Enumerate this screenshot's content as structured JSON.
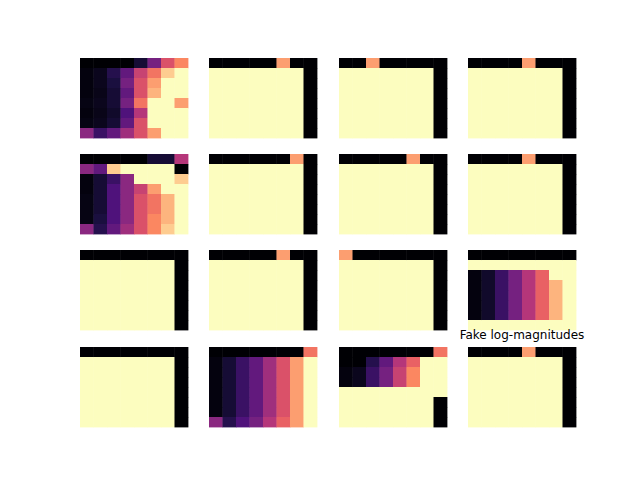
{
  "chart_data": [
    {
      "type": "heatmap",
      "tick_labels": false,
      "clim": [
        0,
        1
      ],
      "cells": [
        [
          0,
          0,
          0,
          0,
          0.1,
          0.35,
          0.6,
          0.75
        ],
        [
          0.02,
          0.05,
          0.15,
          0.3,
          0.55,
          0.7,
          0.9,
          1
        ],
        [
          0.02,
          0.05,
          0.12,
          0.35,
          0.6,
          0.8,
          1,
          1
        ],
        [
          0.02,
          0.04,
          0.1,
          0.3,
          0.6,
          0.85,
          1,
          1
        ],
        [
          0.03,
          0.05,
          0.1,
          0.35,
          0.7,
          1,
          1,
          0.8
        ],
        [
          0.02,
          0.04,
          0.08,
          0.25,
          0.5,
          1,
          1,
          1
        ],
        [
          0.03,
          0.05,
          0.1,
          0.3,
          0.6,
          1,
          1,
          1
        ],
        [
          0.4,
          0.2,
          0.3,
          0.45,
          0.6,
          0.8,
          1,
          1
        ]
      ]
    },
    {
      "type": "heatmap",
      "tick_labels": false,
      "clim": [
        0,
        1
      ],
      "cells": [
        [
          0,
          0,
          0,
          0,
          0,
          0.8,
          0,
          0
        ],
        [
          1,
          1,
          1,
          1,
          1,
          1,
          1,
          0
        ],
        [
          1,
          1,
          1,
          1,
          1,
          1,
          1,
          0
        ],
        [
          1,
          1,
          1,
          1,
          1,
          1,
          1,
          0
        ],
        [
          1,
          1,
          1,
          1,
          1,
          1,
          1,
          0
        ],
        [
          1,
          1,
          1,
          1,
          1,
          1,
          1,
          0
        ],
        [
          1,
          1,
          1,
          1,
          1,
          1,
          1,
          0
        ],
        [
          1,
          1,
          1,
          1,
          1,
          1,
          1,
          0
        ]
      ]
    },
    {
      "type": "heatmap",
      "tick_labels": false,
      "clim": [
        0,
        1
      ],
      "cells": [
        [
          0,
          0,
          0.8,
          0,
          0,
          0,
          0,
          0
        ],
        [
          1,
          1,
          1,
          1,
          1,
          1,
          1,
          0
        ],
        [
          1,
          1,
          1,
          1,
          1,
          1,
          1,
          0
        ],
        [
          1,
          1,
          1,
          1,
          1,
          1,
          1,
          0
        ],
        [
          1,
          1,
          1,
          1,
          1,
          1,
          1,
          0
        ],
        [
          1,
          1,
          1,
          1,
          1,
          1,
          1,
          0
        ],
        [
          1,
          1,
          1,
          1,
          1,
          1,
          1,
          0
        ],
        [
          1,
          1,
          1,
          1,
          1,
          1,
          1,
          0
        ]
      ]
    },
    {
      "type": "heatmap",
      "tick_labels": false,
      "clim": [
        0,
        1
      ],
      "cells": [
        [
          0,
          0,
          0,
          0,
          0.8,
          0,
          0,
          0
        ],
        [
          1,
          1,
          1,
          1,
          1,
          1,
          1,
          0
        ],
        [
          1,
          1,
          1,
          1,
          1,
          1,
          1,
          0
        ],
        [
          1,
          1,
          1,
          1,
          1,
          1,
          1,
          0
        ],
        [
          1,
          1,
          1,
          1,
          1,
          1,
          1,
          0
        ],
        [
          1,
          1,
          1,
          1,
          1,
          1,
          1,
          0
        ],
        [
          1,
          1,
          1,
          1,
          1,
          1,
          1,
          0
        ],
        [
          1,
          1,
          1,
          1,
          1,
          1,
          1,
          0
        ]
      ]
    },
    {
      "type": "heatmap",
      "tick_labels": false,
      "clim": [
        0,
        1
      ],
      "cells": [
        [
          0,
          0,
          0,
          0,
          0,
          0.1,
          0.1,
          0.5
        ],
        [
          0.4,
          0.3,
          0.9,
          1,
          1,
          1,
          1,
          0
        ],
        [
          0.02,
          0.1,
          0.2,
          0.4,
          1,
          1,
          1,
          0.9
        ],
        [
          0.02,
          0.1,
          0.25,
          0.4,
          0.55,
          0.8,
          1,
          1
        ],
        [
          0.03,
          0.1,
          0.25,
          0.4,
          0.6,
          0.7,
          0.85,
          1
        ],
        [
          0.03,
          0.1,
          0.25,
          0.4,
          0.6,
          0.7,
          0.85,
          1
        ],
        [
          0.03,
          0.12,
          0.25,
          0.4,
          0.6,
          0.75,
          0.85,
          1
        ],
        [
          0.4,
          0.15,
          0.3,
          0.45,
          0.6,
          0.75,
          0.9,
          1
        ]
      ]
    },
    {
      "type": "heatmap",
      "tick_labels": false,
      "clim": [
        0,
        1
      ],
      "cells": [
        [
          0,
          0,
          0,
          0,
          0,
          0,
          0.8,
          0
        ],
        [
          1,
          1,
          1,
          1,
          1,
          1,
          1,
          0
        ],
        [
          1,
          1,
          1,
          1,
          1,
          1,
          1,
          0
        ],
        [
          1,
          1,
          1,
          1,
          1,
          1,
          1,
          0
        ],
        [
          1,
          1,
          1,
          1,
          1,
          1,
          1,
          0
        ],
        [
          1,
          1,
          1,
          1,
          1,
          1,
          1,
          0
        ],
        [
          1,
          1,
          1,
          1,
          1,
          1,
          1,
          0
        ],
        [
          1,
          1,
          1,
          1,
          1,
          1,
          1,
          0
        ]
      ]
    },
    {
      "type": "heatmap",
      "tick_labels": false,
      "clim": [
        0,
        1
      ],
      "cells": [
        [
          0,
          0,
          0,
          0,
          0,
          0.8,
          0,
          0
        ],
        [
          1,
          1,
          1,
          1,
          1,
          1,
          1,
          0
        ],
        [
          1,
          1,
          1,
          1,
          1,
          1,
          1,
          0
        ],
        [
          1,
          1,
          1,
          1,
          1,
          1,
          1,
          0
        ],
        [
          1,
          1,
          1,
          1,
          1,
          1,
          1,
          0
        ],
        [
          1,
          1,
          1,
          1,
          1,
          1,
          1,
          0
        ],
        [
          1,
          1,
          1,
          1,
          1,
          1,
          1,
          0
        ],
        [
          1,
          1,
          1,
          1,
          1,
          1,
          1,
          0
        ]
      ]
    },
    {
      "type": "heatmap",
      "tick_labels": false,
      "clim": [
        0,
        1
      ],
      "cells": [
        [
          0,
          0,
          0,
          0,
          0.8,
          0,
          0,
          0
        ],
        [
          1,
          1,
          1,
          1,
          1,
          1,
          1,
          0
        ],
        [
          1,
          1,
          1,
          1,
          1,
          1,
          1,
          0
        ],
        [
          1,
          1,
          1,
          1,
          1,
          1,
          1,
          0
        ],
        [
          1,
          1,
          1,
          1,
          1,
          1,
          1,
          0
        ],
        [
          1,
          1,
          1,
          1,
          1,
          1,
          1,
          0
        ],
        [
          1,
          1,
          1,
          1,
          1,
          1,
          1,
          0
        ],
        [
          1,
          1,
          1,
          1,
          1,
          1,
          1,
          0
        ]
      ]
    },
    {
      "type": "heatmap",
      "tick_labels": false,
      "clim": [
        0,
        1
      ],
      "cells": [
        [
          0,
          0,
          0,
          0,
          0,
          0,
          0,
          0
        ],
        [
          1,
          1,
          1,
          1,
          1,
          1,
          1,
          0
        ],
        [
          1,
          1,
          1,
          1,
          1,
          1,
          1,
          0
        ],
        [
          1,
          1,
          1,
          1,
          1,
          1,
          1,
          0
        ],
        [
          1,
          1,
          1,
          1,
          1,
          1,
          1,
          0
        ],
        [
          1,
          1,
          1,
          1,
          1,
          1,
          1,
          0
        ],
        [
          1,
          1,
          1,
          1,
          1,
          1,
          1,
          0
        ],
        [
          1,
          1,
          1,
          1,
          1,
          1,
          1,
          0
        ]
      ]
    },
    {
      "type": "heatmap",
      "tick_labels": false,
      "clim": [
        0,
        1
      ],
      "cells": [
        [
          0,
          0,
          0,
          0,
          0,
          0.8,
          0,
          0
        ],
        [
          1,
          1,
          1,
          1,
          1,
          1,
          1,
          0
        ],
        [
          1,
          1,
          1,
          1,
          1,
          1,
          1,
          0
        ],
        [
          1,
          1,
          1,
          1,
          1,
          1,
          1,
          0
        ],
        [
          1,
          1,
          1,
          1,
          1,
          1,
          1,
          0
        ],
        [
          1,
          1,
          1,
          1,
          1,
          1,
          1,
          0
        ],
        [
          1,
          1,
          1,
          1,
          1,
          1,
          1,
          0
        ],
        [
          1,
          1,
          1,
          1,
          1,
          1,
          1,
          0
        ]
      ]
    },
    {
      "type": "heatmap",
      "tick_labels": false,
      "clim": [
        0,
        1
      ],
      "cells": [
        [
          0.8,
          0,
          0,
          0,
          0,
          0,
          0,
          0
        ],
        [
          1,
          1,
          1,
          1,
          1,
          1,
          1,
          0
        ],
        [
          1,
          1,
          1,
          1,
          1,
          1,
          1,
          0
        ],
        [
          1,
          1,
          1,
          1,
          1,
          1,
          1,
          0
        ],
        [
          1,
          1,
          1,
          1,
          1,
          1,
          1,
          0
        ],
        [
          1,
          1,
          1,
          1,
          1,
          1,
          1,
          0
        ],
        [
          1,
          1,
          1,
          1,
          1,
          1,
          1,
          0
        ],
        [
          1,
          1,
          1,
          1,
          1,
          1,
          1,
          0
        ]
      ]
    },
    {
      "type": "heatmap",
      "tick_labels": false,
      "clim": [
        0,
        1
      ],
      "cells": [
        [
          0,
          0,
          0,
          0,
          0,
          0,
          0,
          0
        ],
        [
          1,
          1,
          1,
          1,
          1,
          1,
          1,
          1
        ],
        [
          0.02,
          0.08,
          0.2,
          0.35,
          0.5,
          0.65,
          1,
          1
        ],
        [
          0.02,
          0.08,
          0.2,
          0.35,
          0.5,
          0.65,
          0.85,
          1
        ],
        [
          0.02,
          0.08,
          0.2,
          0.35,
          0.5,
          0.65,
          0.85,
          1
        ],
        [
          0.02,
          0.08,
          0.2,
          0.35,
          0.5,
          0.65,
          0.85,
          1
        ],
        [
          0.02,
          0.08,
          0.2,
          0.35,
          0.5,
          0.65,
          0.85,
          1
        ],
        [
          1,
          1,
          1,
          1,
          1,
          1,
          1,
          1
        ]
      ]
    },
    {
      "type": "heatmap",
      "tick_labels": false,
      "clim": [
        0,
        1
      ],
      "cells": [
        [
          0,
          0,
          0,
          0,
          0,
          0,
          0,
          0
        ],
        [
          1,
          1,
          1,
          1,
          1,
          1,
          1,
          0
        ],
        [
          1,
          1,
          1,
          1,
          1,
          1,
          1,
          0
        ],
        [
          1,
          1,
          1,
          1,
          1,
          1,
          1,
          0
        ],
        [
          1,
          1,
          1,
          1,
          1,
          1,
          1,
          0
        ],
        [
          1,
          1,
          1,
          1,
          1,
          1,
          1,
          0
        ],
        [
          1,
          1,
          1,
          1,
          1,
          1,
          1,
          0
        ],
        [
          1,
          1,
          1,
          1,
          1,
          1,
          1,
          0
        ]
      ]
    },
    {
      "type": "heatmap",
      "tick_labels": false,
      "clim": [
        0,
        1
      ],
      "cells": [
        [
          0,
          0,
          0,
          0,
          0,
          0,
          0,
          0.7
        ],
        [
          0.02,
          0.1,
          0.2,
          0.3,
          0.45,
          0.6,
          0.8,
          1
        ],
        [
          0.02,
          0.1,
          0.2,
          0.3,
          0.45,
          0.6,
          0.8,
          1
        ],
        [
          0.02,
          0.1,
          0.2,
          0.3,
          0.45,
          0.6,
          0.8,
          1
        ],
        [
          0.02,
          0.1,
          0.2,
          0.3,
          0.45,
          0.6,
          0.8,
          1
        ],
        [
          0.02,
          0.1,
          0.2,
          0.3,
          0.45,
          0.6,
          0.8,
          1
        ],
        [
          0.02,
          0.1,
          0.2,
          0.3,
          0.45,
          0.6,
          0.8,
          1
        ],
        [
          0.4,
          0.15,
          0.25,
          0.35,
          0.5,
          0.65,
          0.8,
          1
        ]
      ]
    },
    {
      "type": "heatmap",
      "tick_labels": false,
      "clim": [
        0,
        1
      ],
      "cells": [
        [
          0,
          0,
          0,
          0,
          0,
          0,
          0,
          0.7
        ],
        [
          0,
          0,
          0.15,
          0.3,
          0.5,
          0.65,
          1,
          1
        ],
        [
          0.02,
          0.05,
          0.2,
          0.35,
          0.55,
          0.75,
          1,
          1
        ],
        [
          0.02,
          0.05,
          0.2,
          0.35,
          0.55,
          0.75,
          1,
          1
        ],
        [
          1,
          1,
          1,
          1,
          1,
          1,
          1,
          1
        ],
        [
          1,
          1,
          1,
          1,
          1,
          1,
          1,
          0
        ],
        [
          1,
          1,
          1,
          1,
          1,
          1,
          1,
          0
        ],
        [
          1,
          1,
          1,
          1,
          1,
          1,
          1,
          0
        ]
      ]
    },
    {
      "type": "heatmap",
      "title": "Fake log-magnitudes",
      "tick_labels": false,
      "clim": [
        0,
        1
      ],
      "cells": [
        [
          0,
          0,
          0,
          0,
          0.8,
          0,
          0,
          0
        ],
        [
          1,
          1,
          1,
          1,
          1,
          1,
          1,
          0
        ],
        [
          1,
          1,
          1,
          1,
          1,
          1,
          1,
          0
        ],
        [
          1,
          1,
          1,
          1,
          1,
          1,
          1,
          0
        ],
        [
          1,
          1,
          1,
          1,
          1,
          1,
          1,
          0
        ],
        [
          1,
          1,
          1,
          1,
          1,
          1,
          1,
          0
        ],
        [
          1,
          1,
          1,
          1,
          1,
          1,
          1,
          0
        ],
        [
          1,
          1,
          1,
          1,
          1,
          1,
          1,
          0
        ]
      ]
    }
  ]
}
